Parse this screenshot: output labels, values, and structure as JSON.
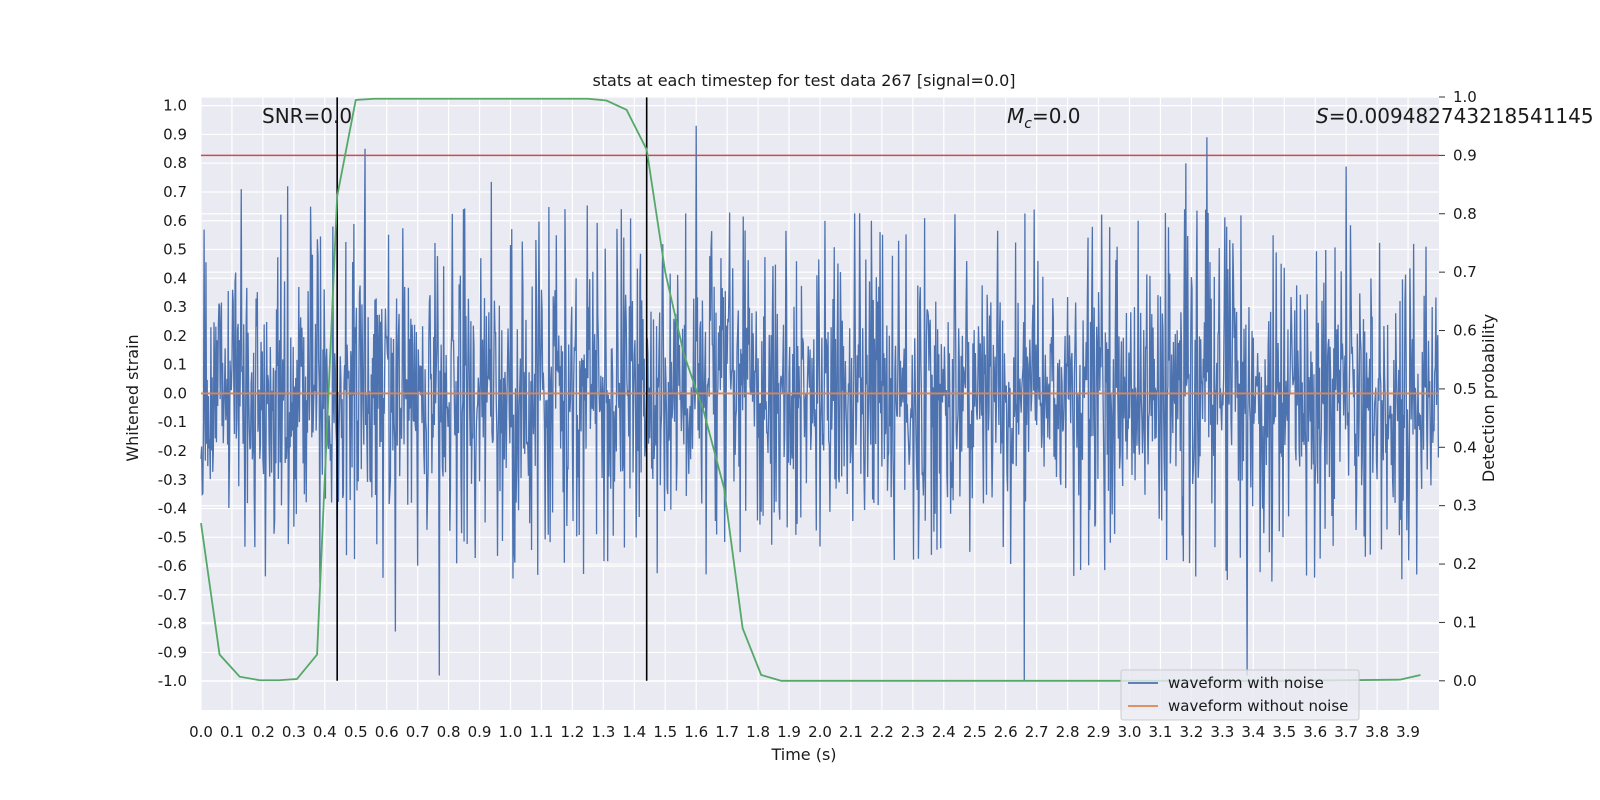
{
  "chart_data": {
    "type": "line",
    "title": "stats at each timestep for test data 267 [signal=0.0]",
    "xlabel": "Time (s)",
    "ylabel": "Whitened strain",
    "y2label": "Detection probability",
    "xlim": [
      0.0,
      4.0
    ],
    "ylim": [
      -1.1,
      1.03
    ],
    "y2lim": [
      -0.05,
      1.0
    ],
    "grid": true,
    "legend_position": "lower right",
    "xticks": [
      "0.0",
      "0.1",
      "0.2",
      "0.3",
      "0.4",
      "0.5",
      "0.6",
      "0.7",
      "0.8",
      "0.9",
      "1.0",
      "1.1",
      "1.2",
      "1.3",
      "1.4",
      "1.5",
      "1.6",
      "1.7",
      "1.8",
      "1.9",
      "2.0",
      "2.1",
      "2.2",
      "2.3",
      "2.4",
      "2.5",
      "2.6",
      "2.7",
      "2.8",
      "2.9",
      "3.0",
      "3.1",
      "3.2",
      "3.3",
      "3.4",
      "3.5",
      "3.6",
      "3.7",
      "3.8",
      "3.9"
    ],
    "yticks": [
      "1.0",
      "0.9",
      "0.8",
      "0.7",
      "0.6",
      "0.5",
      "0.4",
      "0.3",
      "0.2",
      "0.1",
      "0.0",
      "-0.1",
      "-0.2",
      "-0.3",
      "-0.4",
      "-0.5",
      "-0.6",
      "-0.7",
      "-0.8",
      "-0.9",
      "-1.0"
    ],
    "y2ticks": [
      "1.0",
      "0.9",
      "0.8",
      "0.7",
      "0.6",
      "0.5",
      "0.4",
      "0.3",
      "0.2",
      "0.1",
      "0.0"
    ],
    "annotations": {
      "snr": "SNR=0.0",
      "mc_sym": "M",
      "mc_sub": "c",
      "mc_val": "=0.0",
      "s_sym": "S",
      "s_val": "=0.009482743218541145"
    },
    "series": [
      {
        "name": "waveform with noise",
        "color": "#4c72b0",
        "description_of_values": "noise",
        "amplitude_envelope": [
          0.5,
          -0.55
        ]
      },
      {
        "name": "waveform without noise",
        "color": "#dd8452",
        "values": [
          [
            0.0,
            0.0
          ],
          [
            4.0,
            0.0
          ]
        ]
      }
    ],
    "noise_peaks": [
      {
        "x": 0.53,
        "y": 0.85
      },
      {
        "x": 1.6,
        "y": 0.93
      },
      {
        "x": 3.25,
        "y": 0.89
      },
      {
        "x": 0.77,
        "y": -0.98
      },
      {
        "x": 2.66,
        "y": -1.0
      },
      {
        "x": 3.38,
        "y": -0.98
      },
      {
        "x": 0.13,
        "y": 0.71
      },
      {
        "x": 0.28,
        "y": 0.72
      }
    ],
    "detection_probability": {
      "color": "#55a868",
      "x": [
        0.0,
        0.06,
        0.125,
        0.19,
        0.25,
        0.31,
        0.375,
        0.44,
        0.5,
        0.56,
        0.625,
        0.69,
        0.75,
        0.81,
        0.875,
        0.94,
        1.0,
        1.06,
        1.125,
        1.19,
        1.25,
        1.31,
        1.375,
        1.44,
        1.5,
        1.56,
        1.625,
        1.69,
        1.75,
        1.81,
        1.875,
        1.94,
        2.0,
        2.5,
        3.0,
        3.5,
        3.875,
        3.94
      ],
      "y": [
        0.27,
        0.045,
        0.007,
        0.001,
        0.001,
        0.003,
        0.045,
        0.83,
        0.995,
        0.997,
        0.997,
        0.997,
        0.997,
        0.997,
        0.997,
        0.997,
        0.997,
        0.997,
        0.997,
        0.997,
        0.997,
        0.994,
        0.978,
        0.91,
        0.7,
        0.56,
        0.46,
        0.33,
        0.09,
        0.01,
        0.0,
        0.0,
        0.0,
        0.0,
        0.0,
        0.0,
        0.002,
        0.01
      ]
    },
    "threshold_line": {
      "color": "#c44e52",
      "y2": 0.9
    },
    "vertical_lines": [
      {
        "x": 0.44,
        "color": "#000000"
      },
      {
        "x": 1.44,
        "color": "#000000"
      }
    ]
  }
}
